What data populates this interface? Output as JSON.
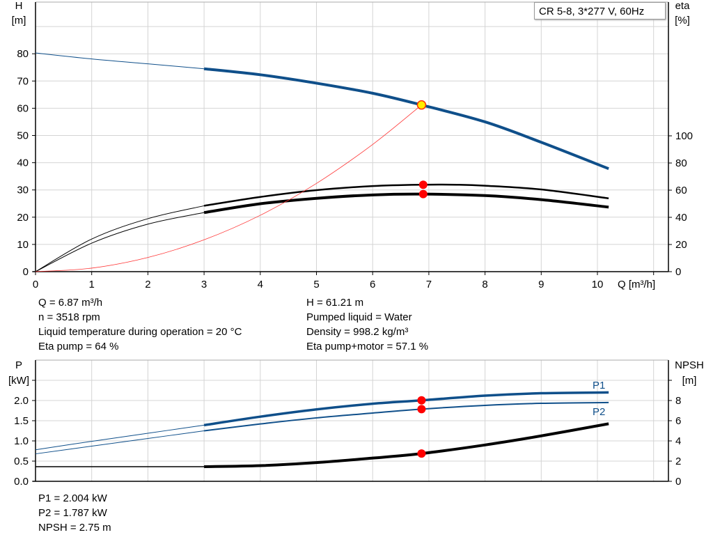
{
  "chart_data": [
    {
      "type": "line",
      "legend": "CR 5-8, 3*277 V, 60Hz",
      "xlabel": "Q [m³/h]",
      "ylabel_left": [
        "H",
        "[m]"
      ],
      "ylabel_right": [
        "eta",
        "[%]"
      ],
      "xlim": [
        0,
        11
      ],
      "ylim_left": [
        0,
        90
      ],
      "ylim_right": [
        0,
        100
      ],
      "x_ticks": [
        0,
        1,
        2,
        3,
        4,
        5,
        6,
        7,
        8,
        9,
        10
      ],
      "y_ticks_left": [
        0,
        10,
        20,
        30,
        40,
        50,
        60,
        70,
        80
      ],
      "y_ticks_right": [
        0,
        20,
        40,
        60,
        80,
        100
      ],
      "grid": true,
      "series": [
        {
          "key": "H",
          "axis": "left",
          "color": "#0f4f8a",
          "points": [
            [
              0,
              80.3
            ],
            [
              1,
              78.1
            ],
            [
              2,
              76.3
            ],
            [
              3,
              74.5
            ],
            [
              4,
              72.3
            ],
            [
              5,
              69.2
            ],
            [
              6,
              65.5
            ],
            [
              6.87,
              61.21
            ],
            [
              8,
              55
            ],
            [
              9,
              47.5
            ],
            [
              10.2,
              37.8
            ]
          ]
        },
        {
          "key": "eta_pump",
          "axis": "right",
          "color": "#000000",
          "points": [
            [
              0,
              0
            ],
            [
              1,
              24
            ],
            [
              2,
              39
            ],
            [
              3,
              48.5
            ],
            [
              4,
              55
            ],
            [
              5,
              60
            ],
            [
              6,
              63
            ],
            [
              6.87,
              64
            ],
            [
              7.5,
              64
            ],
            [
              8,
              63.3
            ],
            [
              9,
              60.5
            ],
            [
              10.2,
              54
            ]
          ]
        },
        {
          "key": "eta_pump_motor",
          "axis": "right",
          "color": "#000000",
          "points": [
            [
              0,
              0
            ],
            [
              1,
              21
            ],
            [
              2,
              35
            ],
            [
              3,
              43.5
            ],
            [
              4,
              50
            ],
            [
              5,
              54
            ],
            [
              6,
              56.5
            ],
            [
              6.87,
              57.1
            ],
            [
              8,
              56
            ],
            [
              9,
              53
            ],
            [
              10.2,
              47.5
            ]
          ]
        },
        {
          "key": "system",
          "axis": "left",
          "color": "#ff3333",
          "points": [
            [
              0,
              0
            ],
            [
              1,
              1.3
            ],
            [
              2,
              5.2
            ],
            [
              3,
              11.7
            ],
            [
              4,
              20.7
            ],
            [
              5,
              32.4
            ],
            [
              6,
              46.7
            ],
            [
              6.87,
              61.21
            ]
          ]
        }
      ],
      "duty_point": {
        "Q": 6.87,
        "H": 61.21
      }
    },
    {
      "type": "line",
      "xlim": [
        0,
        11
      ],
      "ylabel_left": [
        "P",
        "[kW]"
      ],
      "ylabel_right": [
        "NPSH",
        "[m]"
      ],
      "ylim_left": [
        0,
        2.5
      ],
      "ylim_right": [
        0,
        10
      ],
      "y_ticks_left": [
        "0.0",
        "0.5",
        "1.0",
        "1.5",
        "2.0"
      ],
      "y_ticks_right": [
        0,
        2,
        4,
        6,
        8
      ],
      "grid": true,
      "series": [
        {
          "name": "P1",
          "axis": "left",
          "color": "#0f4f8a",
          "points": [
            [
              0,
              0.78
            ],
            [
              1,
              0.99
            ],
            [
              2,
              1.19
            ],
            [
              3,
              1.39
            ],
            [
              4,
              1.6
            ],
            [
              5,
              1.78
            ],
            [
              6,
              1.92
            ],
            [
              6.87,
              2.004
            ],
            [
              8,
              2.12
            ],
            [
              9,
              2.18
            ],
            [
              10.2,
              2.2
            ]
          ]
        },
        {
          "name": "P2",
          "axis": "left",
          "color": "#0f4f8a",
          "points": [
            [
              0,
              0.68
            ],
            [
              1,
              0.87
            ],
            [
              2,
              1.06
            ],
            [
              3,
              1.25
            ],
            [
              4,
              1.42
            ],
            [
              5,
              1.57
            ],
            [
              6,
              1.69
            ],
            [
              6.87,
              1.787
            ],
            [
              8,
              1.88
            ],
            [
              9,
              1.93
            ],
            [
              10.2,
              1.95
            ]
          ]
        },
        {
          "key": "NPSH",
          "axis": "right",
          "color": "#000000",
          "points": [
            [
              0,
              1.45
            ],
            [
              3,
              1.45
            ],
            [
              4,
              1.55
            ],
            [
              5,
              1.85
            ],
            [
              6,
              2.3
            ],
            [
              6.87,
              2.75
            ],
            [
              8,
              3.6
            ],
            [
              9,
              4.5
            ],
            [
              10.2,
              5.7
            ]
          ]
        }
      ]
    }
  ],
  "info_top_left": [
    "Q = 6.87 m³/h",
    "n = 3518 rpm",
    "Liquid temperature during operation = 20 °C",
    "Eta pump = 64 %"
  ],
  "info_top_right": [
    "H = 61.21 m",
    "Pumped liquid = Water",
    "Density = 998.2 kg/m³",
    "Eta pump+motor = 57.1 %"
  ],
  "info_bottom": [
    "P1 = 2.004 kW",
    "P2 = 1.787 kW",
    "NPSH = 2.75 m"
  ]
}
